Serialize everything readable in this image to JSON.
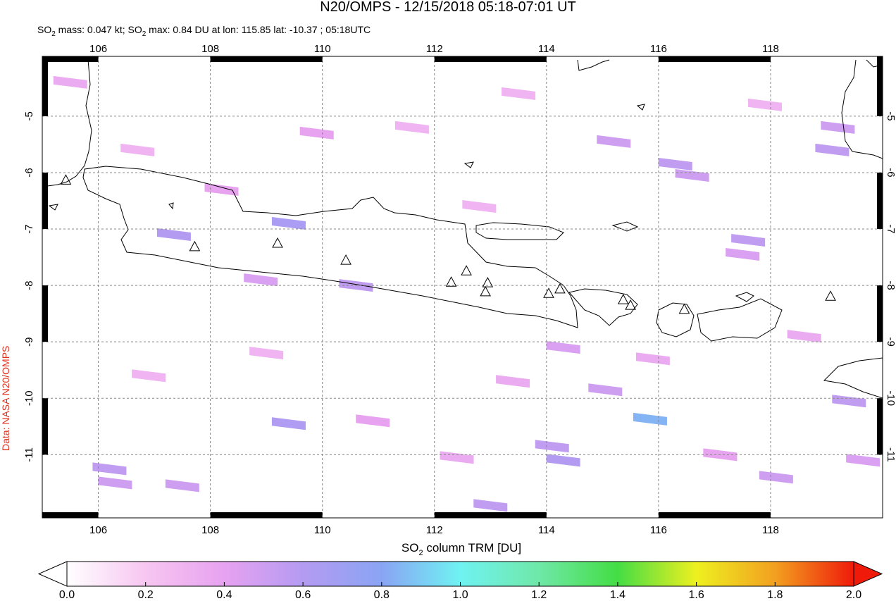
{
  "header": {
    "title": "N20/OMPS - 12/15/2018 05:18-07:01 UT",
    "subtitle": [
      "SO",
      "2",
      " mass: 0.047 kt; SO",
      "2",
      " max: 0.84 DU at lon: 115.85 lat: -10.37 ; 05:18UTC"
    ],
    "credit": "Data: NASA N20/OMPS"
  },
  "chart_data": {
    "type": "map",
    "xlim": [
      105,
      120
    ],
    "ylim": [
      -12.12,
      -3.94
    ],
    "xticks": [
      106,
      108,
      110,
      112,
      114,
      116,
      118
    ],
    "yticks": [
      -5,
      -6,
      -7,
      -8,
      -9,
      -10,
      -11
    ],
    "grid": true,
    "volcanoes": [
      [
        105.42,
        -6.13
      ],
      [
        107.72,
        -7.31
      ],
      [
        109.2,
        -7.25
      ],
      [
        110.42,
        -7.55
      ],
      [
        112.3,
        -7.94
      ],
      [
        112.57,
        -7.74
      ],
      [
        112.95,
        -7.95
      ],
      [
        112.91,
        -8.11
      ],
      [
        114.04,
        -8.14
      ],
      [
        114.24,
        -8.06
      ],
      [
        115.37,
        -8.25
      ],
      [
        115.5,
        -8.35
      ],
      [
        116.46,
        -8.42
      ],
      [
        119.07,
        -8.19
      ]
    ],
    "pixels": [
      {
        "lon": 109.4,
        "lat": -6.9,
        "value": 0.65
      },
      {
        "lon": 107.35,
        "lat": -7.1,
        "value": 0.6
      },
      {
        "lon": 110.6,
        "lat": -8.0,
        "value": 0.55
      },
      {
        "lon": 109.4,
        "lat": -10.45,
        "value": 0.62
      },
      {
        "lon": 115.85,
        "lat": -10.37,
        "value": 0.84
      },
      {
        "lon": 114.3,
        "lat": -11.1,
        "value": 0.6
      },
      {
        "lon": 114.1,
        "lat": -10.85,
        "value": 0.55
      },
      {
        "lon": 115.05,
        "lat": -9.85,
        "value": 0.5
      },
      {
        "lon": 106.2,
        "lat": -11.25,
        "value": 0.55
      },
      {
        "lon": 107.5,
        "lat": -11.55,
        "value": 0.5
      },
      {
        "lon": 106.3,
        "lat": -11.5,
        "value": 0.5
      },
      {
        "lon": 113.0,
        "lat": -11.9,
        "value": 0.55
      },
      {
        "lon": 116.6,
        "lat": -6.05,
        "value": 0.5
      },
      {
        "lon": 115.2,
        "lat": -5.45,
        "value": 0.5
      },
      {
        "lon": 116.3,
        "lat": -5.85,
        "value": 0.55
      },
      {
        "lon": 119.2,
        "lat": -5.2,
        "value": 0.5
      },
      {
        "lon": 119.1,
        "lat": -5.6,
        "value": 0.55
      },
      {
        "lon": 117.6,
        "lat": -7.2,
        "value": 0.55
      },
      {
        "lon": 117.5,
        "lat": -7.45,
        "value": 0.45
      },
      {
        "lon": 119.4,
        "lat": -10.05,
        "value": 0.55
      },
      {
        "lon": 118.1,
        "lat": -11.4,
        "value": 0.5
      },
      {
        "lon": 119.65,
        "lat": -11.1,
        "value": 0.45
      },
      {
        "lon": 108.2,
        "lat": -6.3,
        "value": 0.4
      },
      {
        "lon": 109.9,
        "lat": -5.3,
        "value": 0.4
      },
      {
        "lon": 108.9,
        "lat": -7.9,
        "value": 0.45
      },
      {
        "lon": 110.9,
        "lat": -10.4,
        "value": 0.4
      },
      {
        "lon": 112.4,
        "lat": -11.05,
        "value": 0.35
      },
      {
        "lon": 113.4,
        "lat": -9.7,
        "value": 0.35
      },
      {
        "lon": 114.3,
        "lat": -9.1,
        "value": 0.45
      },
      {
        "lon": 115.9,
        "lat": -9.3,
        "value": 0.35
      },
      {
        "lon": 117.1,
        "lat": -11.0,
        "value": 0.4
      },
      {
        "lon": 105.5,
        "lat": -4.4,
        "value": 0.35
      },
      {
        "lon": 106.7,
        "lat": -5.6,
        "value": 0.3
      },
      {
        "lon": 111.6,
        "lat": -5.2,
        "value": 0.3
      },
      {
        "lon": 113.5,
        "lat": -4.6,
        "value": 0.3
      },
      {
        "lon": 118.6,
        "lat": -8.9,
        "value": 0.35
      },
      {
        "lon": 109.0,
        "lat": -9.2,
        "value": 0.3
      },
      {
        "lon": 106.9,
        "lat": -9.6,
        "value": 0.3
      },
      {
        "lon": 112.8,
        "lat": -6.6,
        "value": 0.3
      },
      {
        "lon": 117.9,
        "lat": -4.8,
        "value": 0.3
      }
    ],
    "colorbar": {
      "label": [
        "SO",
        "2",
        " column TRM [DU]"
      ],
      "ticks": [
        {
          "value": 0,
          "label": "0.0"
        },
        {
          "value": 0.2,
          "label": "0.2"
        },
        {
          "value": 0.4,
          "label": "0.4"
        },
        {
          "value": 0.6,
          "label": "0.6"
        },
        {
          "value": 0.8,
          "label": "0.8"
        },
        {
          "value": 1,
          "label": "1.0"
        },
        {
          "value": 1.2,
          "label": "1.2"
        },
        {
          "value": 1.4,
          "label": "1.4"
        },
        {
          "value": 1.6,
          "label": "1.6"
        },
        {
          "value": 1.8,
          "label": "1.8"
        },
        {
          "value": 2,
          "label": "2.0"
        }
      ],
      "lim": [
        0,
        2
      ],
      "stops": [
        [
          0,
          "#ffffff"
        ],
        [
          0.2,
          "#f7c6f1"
        ],
        [
          0.4,
          "#e7a2f0"
        ],
        [
          0.6,
          "#b49bf2"
        ],
        [
          0.8,
          "#8aa4f4"
        ],
        [
          1,
          "#6ff2f2"
        ],
        [
          1.2,
          "#6fe8a8"
        ],
        [
          1.4,
          "#44dd44"
        ],
        [
          1.6,
          "#eef020"
        ],
        [
          1.8,
          "#f2a020"
        ],
        [
          2,
          "#f01a0a"
        ]
      ]
    }
  }
}
